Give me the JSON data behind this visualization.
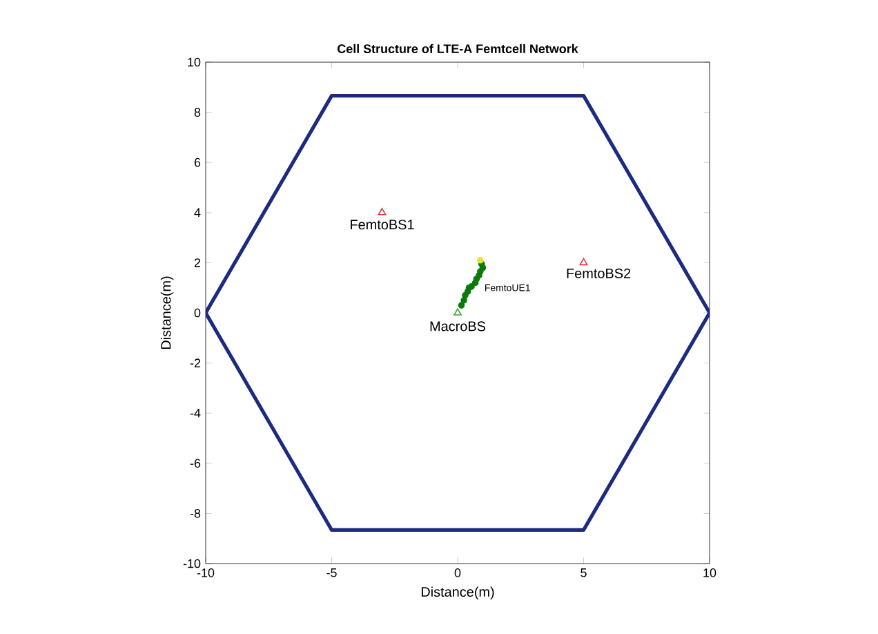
{
  "chart_data": {
    "type": "line",
    "title": "Cell Structure of LTE-A Femtcell Network",
    "xlabel": "Distance(m)",
    "ylabel": "Distance(m)",
    "xlim": [
      -10,
      10
    ],
    "ylim": [
      -10,
      10
    ],
    "xticks": [
      -10,
      -5,
      0,
      5,
      10
    ],
    "yticks": [
      -10,
      -8,
      -6,
      -4,
      -2,
      0,
      2,
      4,
      6,
      8,
      10
    ],
    "grid": false,
    "series": [
      {
        "color": "#1c2a80",
        "x": [
          -10,
          -5,
          5,
          10
        ],
        "values": [
          0,
          8.66,
          8.66,
          0
        ]
      },
      {
        "color": "#1c2a80",
        "x": [
          -10,
          -5,
          5,
          10
        ],
        "values": [
          0,
          -8.66,
          -8.66,
          0
        ]
      },
      {
        "type": "scatter",
        "marker": "triangle",
        "color": "#e8323c",
        "x": [
          -3,
          5
        ],
        "values": [
          4,
          2
        ]
      },
      {
        "type": "scatter",
        "marker": "triangle",
        "color": "#3aa83a",
        "x": [
          0
        ],
        "values": [
          0
        ]
      },
      {
        "type": "scatter",
        "marker": "circle",
        "color": "#0a7a0a",
        "x": [
          0.15,
          0.25,
          0.3,
          0.4,
          0.45,
          0.55,
          0.7,
          0.75,
          0.85,
          0.9,
          1.0,
          0.95
        ],
        "values": [
          0.3,
          0.5,
          0.7,
          0.85,
          1.0,
          1.05,
          1.2,
          1.35,
          1.5,
          1.65,
          1.8,
          1.95
        ]
      },
      {
        "type": "scatter",
        "marker": "circle",
        "color": "#e6e62a",
        "x": [
          0.9
        ],
        "values": [
          2.1
        ]
      }
    ],
    "annotations": [
      {
        "text": "FemtoBS1",
        "x": -3,
        "y": 4
      },
      {
        "text": "FemtoUE1",
        "x": 1.0,
        "y": 1.0
      },
      {
        "text": "FemtoBS2",
        "x": 5,
        "y": 2
      },
      {
        "text": "MacroBS",
        "x": 0,
        "y": 0
      }
    ]
  }
}
